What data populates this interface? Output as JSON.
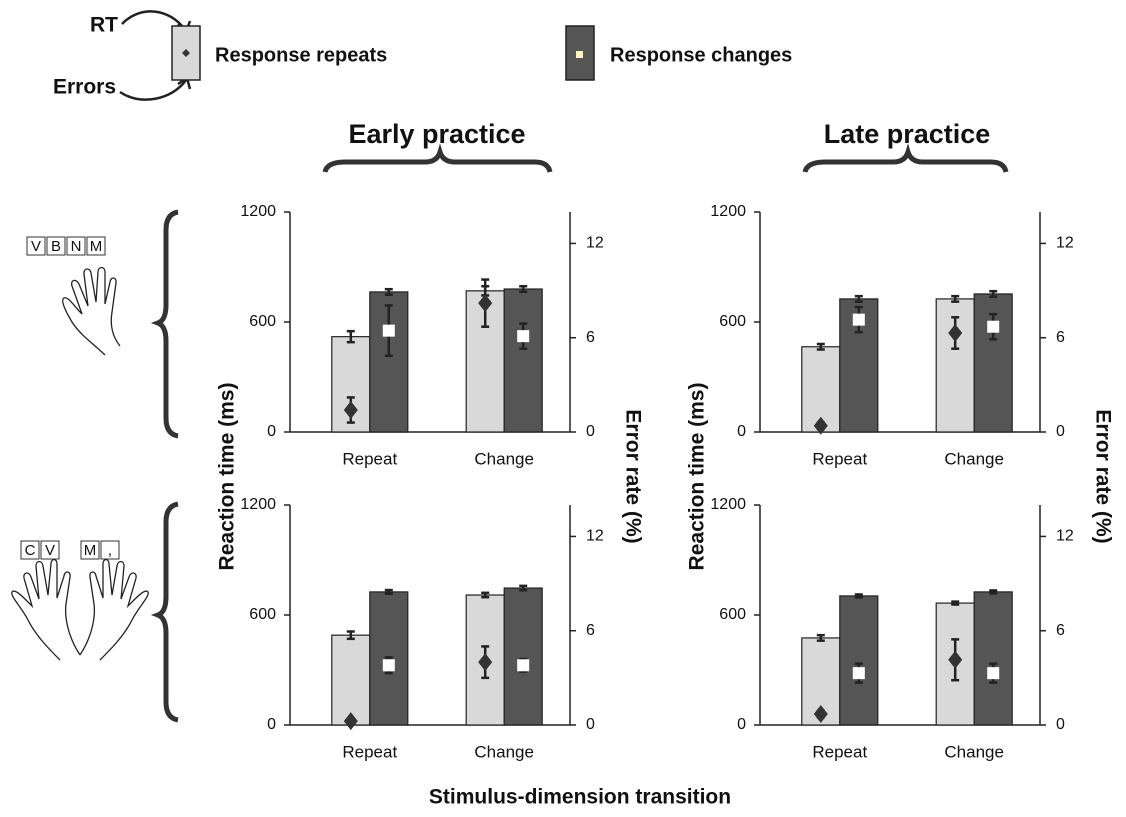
{
  "legend": {
    "rt": "RT",
    "errors": "Errors",
    "series": [
      {
        "name": "Response repeats",
        "color": "#d9d9d9"
      },
      {
        "name": "Response changes",
        "color": "#555555"
      }
    ]
  },
  "rows": [
    {
      "keys": [
        "V",
        "B",
        "N",
        "M"
      ]
    },
    {
      "keys": [
        "C",
        "V",
        "M",
        ","
      ]
    }
  ],
  "xlabel": "Stimulus-dimension transition",
  "chart_data": [
    {
      "type": "bar",
      "title": "Early practice",
      "ylabel": "Reaction time (ms)",
      "y2label": "Error rate (%)",
      "categories": [
        "Repeat",
        "Change"
      ],
      "ylim": [
        0,
        1200
      ],
      "yticks": [
        0,
        600,
        1200
      ],
      "y2lim": [
        0,
        14
      ],
      "y2ticks": [
        0,
        6,
        12
      ],
      "series": [
        {
          "kind": "bar",
          "color": "#d9d9d9",
          "values": [
            520,
            770
          ],
          "errors": [
            30,
            25
          ]
        },
        {
          "kind": "bar",
          "color": "#555555",
          "values": [
            764,
            780
          ],
          "errors": [
            15,
            15
          ]
        },
        {
          "kind": "point",
          "axis": "y2",
          "marker": "diamond",
          "color": "#333333",
          "values": [
            1.4,
            8.2
          ],
          "errors": [
            0.8,
            1.5
          ]
        },
        {
          "kind": "point",
          "axis": "y2",
          "marker": "square",
          "color": "#ffffff",
          "values": [
            6.45,
            6.1
          ],
          "errors": [
            1.6,
            0.8
          ]
        }
      ]
    },
    {
      "type": "bar",
      "title": "Late practice",
      "ylabel": "Reaction time (ms)",
      "y2label": "Error rate (%)",
      "categories": [
        "Repeat",
        "Change"
      ],
      "ylim": [
        0,
        1200
      ],
      "yticks": [
        0,
        600,
        1200
      ],
      "y2lim": [
        0,
        14
      ],
      "y2ticks": [
        0,
        6,
        12
      ],
      "series": [
        {
          "kind": "bar",
          "color": "#d9d9d9",
          "values": [
            465,
            726
          ],
          "errors": [
            15,
            15
          ]
        },
        {
          "kind": "bar",
          "color": "#555555",
          "values": [
            726,
            753
          ],
          "errors": [
            15,
            15
          ]
        },
        {
          "kind": "point",
          "axis": "y2",
          "marker": "diamond",
          "color": "#333333",
          "values": [
            0.4,
            6.3
          ],
          "errors": [
            0.2,
            1.0
          ]
        },
        {
          "kind": "point",
          "axis": "y2",
          "marker": "square",
          "color": "#ffffff",
          "values": [
            7.15,
            6.7
          ],
          "errors": [
            0.8,
            0.8
          ]
        }
      ]
    },
    {
      "type": "bar",
      "categories": [
        "Repeat",
        "Change"
      ],
      "ylim": [
        0,
        1200
      ],
      "yticks": [
        0,
        600,
        1200
      ],
      "y2lim": [
        0,
        14
      ],
      "y2ticks": [
        0,
        6,
        12
      ],
      "series": [
        {
          "kind": "bar",
          "color": "#d9d9d9",
          "values": [
            490,
            709
          ],
          "errors": [
            20,
            12
          ]
        },
        {
          "kind": "bar",
          "color": "#555555",
          "values": [
            726,
            747
          ],
          "errors": [
            10,
            12
          ]
        },
        {
          "kind": "point",
          "axis": "y2",
          "marker": "diamond",
          "color": "#333333",
          "values": [
            0.25,
            4.0
          ],
          "errors": [
            0.1,
            1.0
          ]
        },
        {
          "kind": "point",
          "axis": "y2",
          "marker": "square",
          "color": "#ffffff",
          "values": [
            3.8,
            3.8
          ],
          "errors": [
            0.5,
            0.4
          ]
        }
      ]
    },
    {
      "type": "bar",
      "categories": [
        "Repeat",
        "Change"
      ],
      "ylim": [
        0,
        1200
      ],
      "yticks": [
        0,
        600,
        1200
      ],
      "y2lim": [
        0,
        14
      ],
      "y2ticks": [
        0,
        6,
        12
      ],
      "series": [
        {
          "kind": "bar",
          "color": "#d9d9d9",
          "values": [
            475,
            665
          ],
          "errors": [
            15,
            8
          ]
        },
        {
          "kind": "bar",
          "color": "#555555",
          "values": [
            704,
            726
          ],
          "errors": [
            8,
            8
          ]
        },
        {
          "kind": "point",
          "axis": "y2",
          "marker": "diamond",
          "color": "#333333",
          "values": [
            0.7,
            4.15
          ],
          "errors": [
            0.2,
            1.3
          ]
        },
        {
          "kind": "point",
          "axis": "y2",
          "marker": "square",
          "color": "#ffffff",
          "values": [
            3.3,
            3.3
          ],
          "errors": [
            0.6,
            0.6
          ]
        }
      ]
    }
  ]
}
